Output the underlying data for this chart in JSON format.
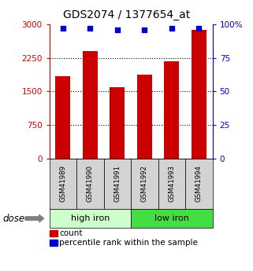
{
  "title": "GDS2074 / 1377654_at",
  "categories": [
    "GSM41989",
    "GSM41990",
    "GSM41991",
    "GSM41992",
    "GSM41993",
    "GSM41994"
  ],
  "bar_values": [
    1850,
    2400,
    1600,
    1870,
    2180,
    2870
  ],
  "percentile_values": [
    97,
    97,
    96,
    96,
    97,
    97
  ],
  "bar_color": "#cc0000",
  "dot_color": "#0000cc",
  "ylim_left": [
    0,
    3000
  ],
  "ylim_right": [
    0,
    100
  ],
  "yticks_left": [
    0,
    750,
    1500,
    2250,
    3000
  ],
  "ytick_labels_left": [
    "0",
    "750",
    "1500",
    "2250",
    "3000"
  ],
  "yticks_right": [
    0,
    25,
    50,
    75,
    100
  ],
  "ytick_labels_right": [
    "0",
    "25",
    "50",
    "75",
    "100%"
  ],
  "groups": [
    {
      "label": "high iron",
      "indices": [
        0,
        1,
        2
      ],
      "color": "#ccffcc"
    },
    {
      "label": "low iron",
      "indices": [
        3,
        4,
        5
      ],
      "color": "#44dd44"
    }
  ],
  "dose_label": "dose",
  "legend_count_label": "count",
  "legend_pct_label": "percentile rank within the sample",
  "left_axis_color": "#cc0000",
  "right_axis_color": "#0000cc",
  "gray_color": "#d3d3d3"
}
